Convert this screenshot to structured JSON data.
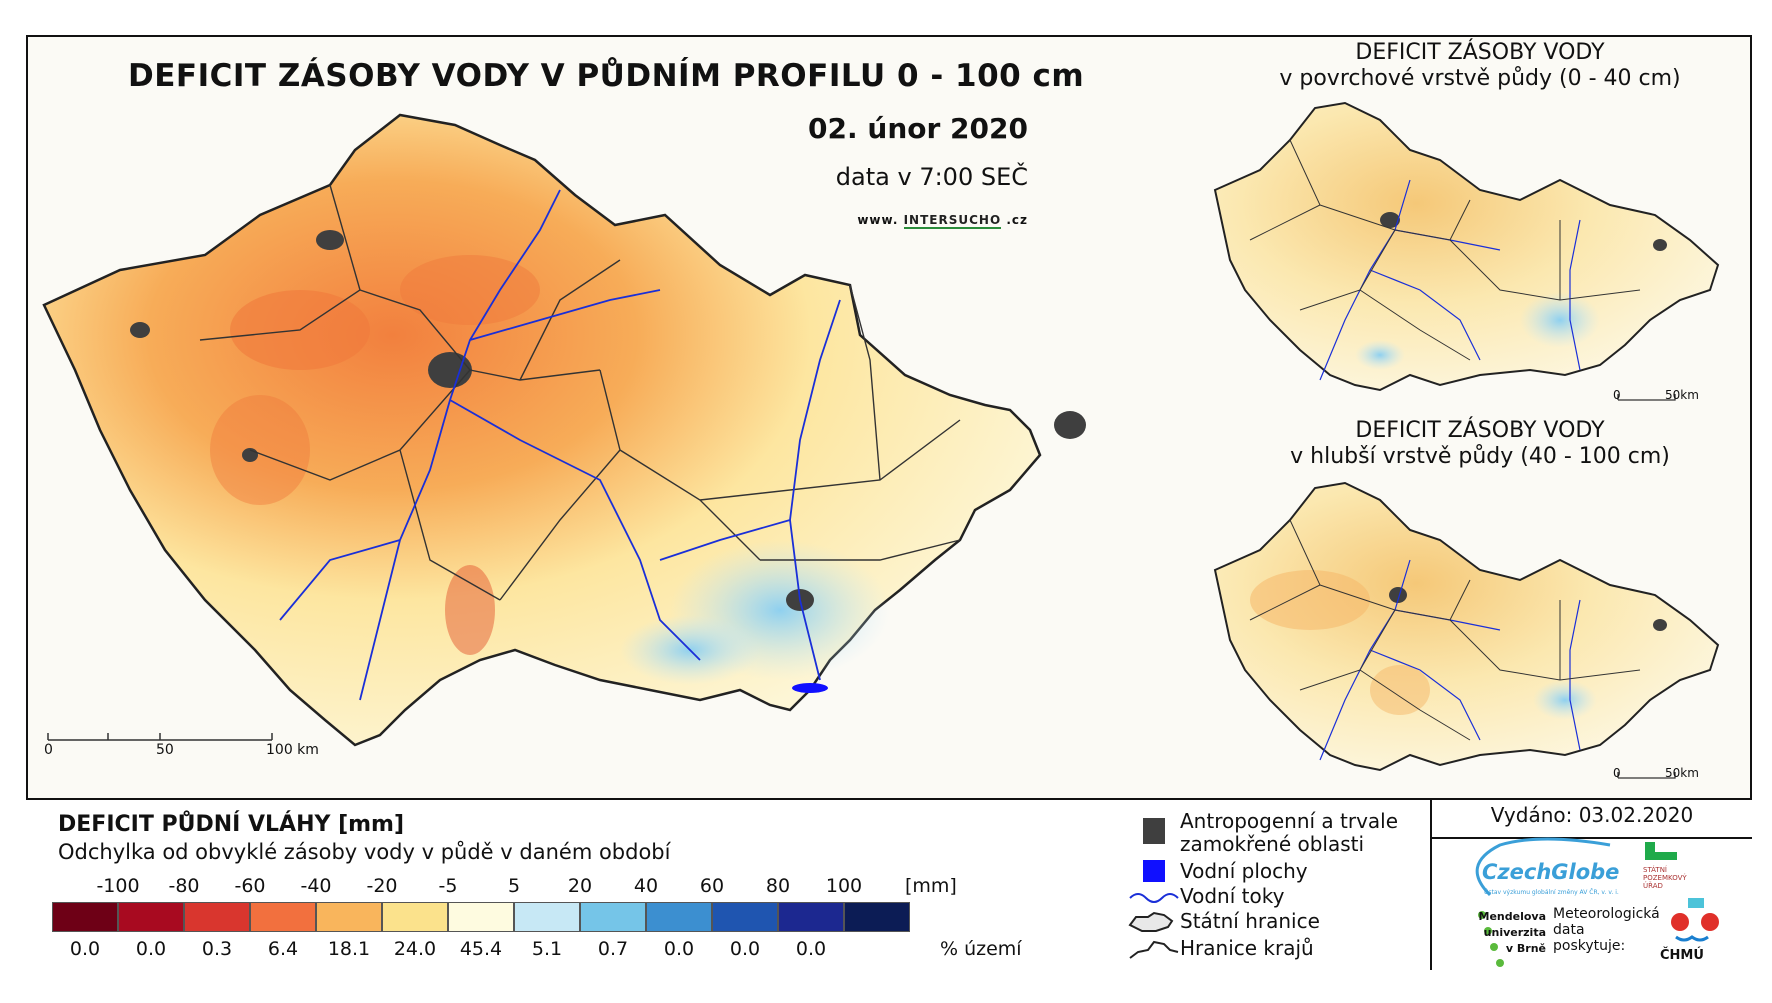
{
  "main": {
    "title": "DEFICIT ZÁSOBY VODY V PŮDNÍM PROFILU 0 - 100 cm",
    "date": "02. únor 2020",
    "time": "data v 7:00 SEČ",
    "website_prefix": "www.",
    "website_brand": "INTERSUCHO",
    "website_suffix": ".cz",
    "scale": {
      "labels": [
        "0",
        "50",
        "100 km"
      ]
    }
  },
  "inset_top": {
    "title_line1": "DEFICIT ZÁSOBY VODY",
    "title_line2": "v povrchové vrstvě půdy (0 - 40 cm)",
    "scale": {
      "labels": [
        "0",
        "50km"
      ]
    }
  },
  "inset_bottom": {
    "title_line1": "DEFICIT ZÁSOBY VODY",
    "title_line2": "v hlubší vrstvě půdy (40 - 100 cm)",
    "scale": {
      "labels": [
        "0",
        "50km"
      ]
    }
  },
  "legend": {
    "title": "DEFICIT PŮDNÍ VLÁHY [mm]",
    "subtitle": "Odchylka od obvyklé zásoby vody v půdě v daném období",
    "ticks": [
      "-100",
      "-80",
      "-60",
      "-40",
      "-20",
      "-5",
      "5",
      "20",
      "40",
      "60",
      "80",
      "100"
    ],
    "unit_mm": "[mm]",
    "classes": [
      {
        "color": "#6e0016",
        "pct": "0.0"
      },
      {
        "color": "#a80a20",
        "pct": "0.0"
      },
      {
        "color": "#d9362e",
        "pct": "0.3"
      },
      {
        "color": "#f2703e",
        "pct": "6.4"
      },
      {
        "color": "#f9b55c",
        "pct": "18.1"
      },
      {
        "color": "#fbe28c",
        "pct": "24.0"
      },
      {
        "color": "#fefbe0",
        "pct": "45.4"
      },
      {
        "color": "#c7e8f5",
        "pct": "5.1"
      },
      {
        "color": "#75c5e8",
        "pct": "0.7"
      },
      {
        "color": "#3c8fd0",
        "pct": "0.0"
      },
      {
        "color": "#1f55b0",
        "pct": "0.0"
      },
      {
        "color": "#1c2890",
        "pct": "0.0"
      },
      {
        "color": "#0c1c55",
        "pct": ""
      }
    ],
    "unit_pct": "% území"
  },
  "symbols": {
    "anthropogenic_line1": "Antropogenní a trvale",
    "anthropogenic_line2": "zamokřené oblasti",
    "water_bodies": "Vodní plochy",
    "rivers": "Vodní toky",
    "state_border": "Státní hranice",
    "region_border": "Hranice krajů"
  },
  "issued": "Vydáno: 03.02.2020",
  "logos": {
    "czechglobe": "CzechGlobe",
    "czechglobe_sub": "Ústav výzkumu globální změny AV ČR, v. v. i.",
    "spu_line1": "STÁTNÍ",
    "spu_line2": "POZEMKOVÝ",
    "spu_line3": "ÚŘAD",
    "mendel_line1": "Mendelova",
    "mendel_line2": "univerzita",
    "mendel_line3": "v Brně",
    "meteo_line1": "Meteorologická",
    "meteo_line2": "data",
    "meteo_line3": "poskytuje:",
    "chmu": "ČHMÚ"
  },
  "colors": {
    "anthropogenic": "#3f3f3f",
    "water": "#1010ff",
    "river": "#1a2fd8",
    "border": "#222222"
  }
}
